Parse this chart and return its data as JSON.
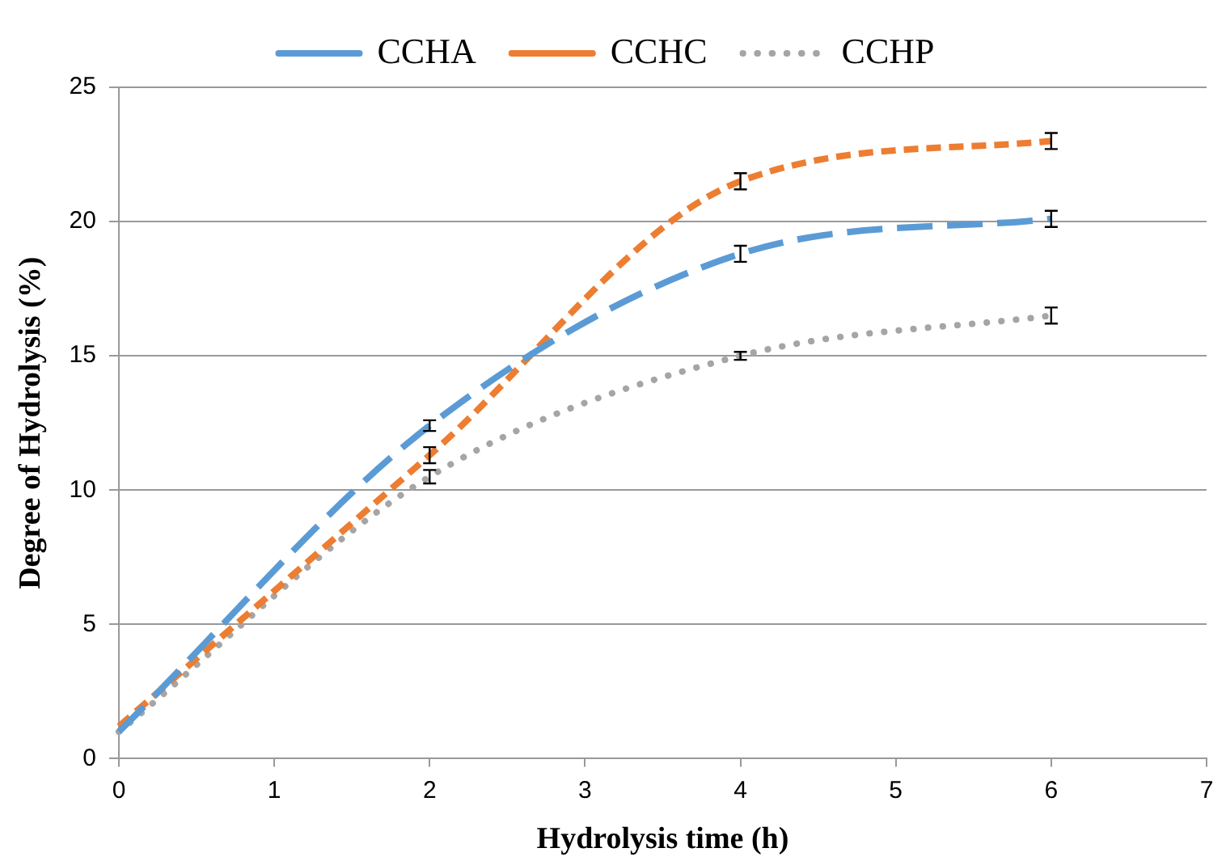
{
  "chart_data": {
    "type": "line",
    "xlabel": "Hydrolysis time (h)",
    "ylabel": "Degree of Hydrolysis (%)",
    "xlim": [
      0,
      7
    ],
    "xticks": [
      0,
      1,
      2,
      3,
      4,
      5,
      6,
      7
    ],
    "ylim": [
      0,
      25
    ],
    "yticks": [
      0,
      5,
      10,
      15,
      20,
      25
    ],
    "grid": "y",
    "legend": "top",
    "x": [
      0,
      2,
      4,
      6
    ],
    "series": [
      {
        "name": "CCHA",
        "color": "#5b9bd5",
        "line_style": "dashed",
        "values": [
          1.0,
          12.4,
          18.8,
          20.1
        ],
        "errors": [
          null,
          0.2,
          0.3,
          0.3
        ]
      },
      {
        "name": "CCHC",
        "color": "#ed7d31",
        "line_style": "dashed",
        "values": [
          1.2,
          11.3,
          21.5,
          23.0
        ],
        "errors": [
          null,
          0.3,
          0.3,
          0.3
        ]
      },
      {
        "name": "CCHP",
        "color": "#a5a5a5",
        "line_style": "dotted",
        "values": [
          1.0,
          10.5,
          15.0,
          16.5
        ],
        "errors": [
          null,
          0.25,
          0.15,
          0.3
        ]
      }
    ]
  }
}
